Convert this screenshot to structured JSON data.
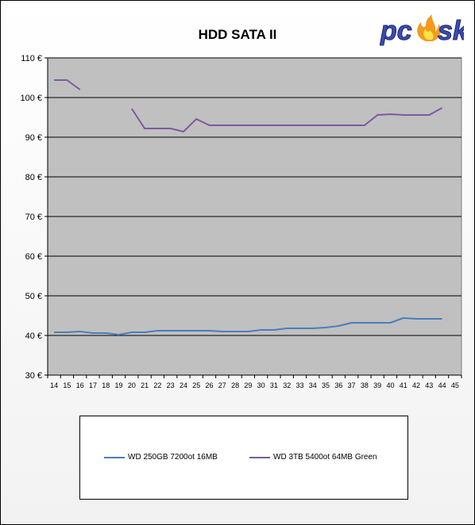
{
  "logo": {
    "text": "pcesk",
    "letter_color": "#3b4bb0",
    "flame_color": "#f39a1f"
  },
  "chart_data": {
    "type": "line",
    "title": "HDD SATA II",
    "xlabel": "",
    "ylabel": "",
    "x": [
      14,
      15,
      16,
      17,
      18,
      19,
      20,
      21,
      22,
      23,
      24,
      25,
      26,
      27,
      28,
      29,
      30,
      31,
      32,
      33,
      34,
      35,
      36,
      37,
      38,
      39,
      40,
      41,
      42,
      43,
      44,
      45
    ],
    "x_tick_labels": [
      "14",
      "15",
      "16",
      "17",
      "18",
      "19",
      "20",
      "21",
      "22",
      "23",
      "24",
      "25",
      "26",
      "27",
      "28",
      "29",
      "30",
      "31",
      "32",
      "33",
      "34",
      "35",
      "36",
      "37",
      "38",
      "39",
      "40",
      "41",
      "42",
      "43",
      "44",
      "45"
    ],
    "ylim": [
      30,
      110
    ],
    "y_ticks": [
      30,
      40,
      50,
      60,
      70,
      80,
      90,
      100,
      110
    ],
    "y_tick_labels": [
      "30 €",
      "40 €",
      "50 €",
      "60 €",
      "70 €",
      "80 €",
      "90 €",
      "100 €",
      "110 €"
    ],
    "grid": true,
    "plot_background": "#c0c0c0",
    "legend_position": "bottom",
    "series": [
      {
        "name": "WD 250GB 7200ot 16MB",
        "color": "#4a7ebb",
        "values": [
          40.8,
          40.8,
          41.0,
          40.6,
          40.6,
          40.2,
          40.8,
          40.8,
          41.2,
          41.2,
          41.2,
          41.2,
          41.2,
          41.0,
          41.0,
          41.0,
          41.4,
          41.4,
          41.8,
          41.8,
          41.8,
          42.0,
          42.4,
          43.2,
          43.2,
          43.2,
          43.2,
          44.4,
          44.2,
          44.2,
          44.2,
          null
        ]
      },
      {
        "name": "WD 3TB 5400ot 64MB Green",
        "color": "#7d5a9e",
        "values": [
          104.4,
          104.4,
          102.0,
          null,
          null,
          null,
          97.2,
          92.2,
          92.2,
          92.2,
          91.4,
          94.6,
          93.0,
          93.0,
          93.0,
          93.0,
          93.0,
          93.0,
          93.0,
          93.0,
          93.0,
          93.0,
          93.0,
          93.0,
          93.0,
          95.6,
          95.8,
          95.6,
          95.6,
          95.6,
          97.4,
          null
        ]
      }
    ]
  }
}
